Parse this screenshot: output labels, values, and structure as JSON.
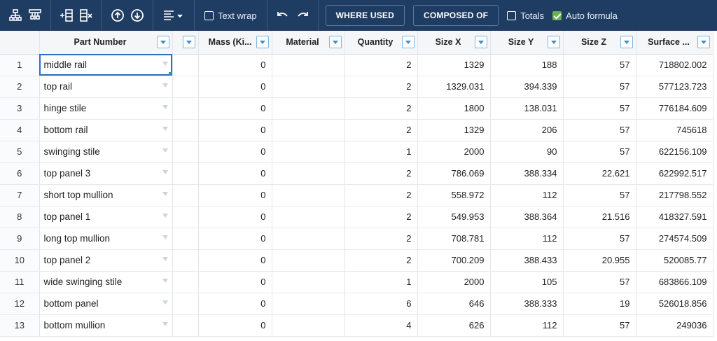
{
  "toolbar": {
    "text_wrap_label": "Text wrap",
    "text_wrap_checked": false,
    "where_used_label": "WHERE USED",
    "composed_of_label": "COMPOSED OF",
    "totals_label": "Totals",
    "totals_checked": false,
    "auto_formula_label": "Auto formula",
    "auto_formula_checked": true
  },
  "columns": [
    {
      "key": "part",
      "label": "Part Number"
    },
    {
      "key": "blank",
      "label": ""
    },
    {
      "key": "mass",
      "label": "Mass (Ki..."
    },
    {
      "key": "material",
      "label": "Material"
    },
    {
      "key": "quantity",
      "label": "Quantity"
    },
    {
      "key": "sizex",
      "label": "Size X"
    },
    {
      "key": "sizey",
      "label": "Size Y"
    },
    {
      "key": "sizez",
      "label": "Size Z"
    },
    {
      "key": "surface",
      "label": "Surface ..."
    }
  ],
  "rows": [
    {
      "n": "1",
      "part": "middle rail",
      "mass": "0",
      "material": "",
      "quantity": "2",
      "sizex": "1329",
      "sizey": "188",
      "sizez": "57",
      "surface": "718802.002"
    },
    {
      "n": "2",
      "part": "top rail",
      "mass": "0",
      "material": "",
      "quantity": "2",
      "sizex": "1329.031",
      "sizey": "394.339",
      "sizez": "57",
      "surface": "577123.723"
    },
    {
      "n": "3",
      "part": "hinge stile",
      "mass": "0",
      "material": "",
      "quantity": "2",
      "sizex": "1800",
      "sizey": "138.031",
      "sizez": "57",
      "surface": "776184.609"
    },
    {
      "n": "4",
      "part": "bottom rail",
      "mass": "0",
      "material": "",
      "quantity": "2",
      "sizex": "1329",
      "sizey": "206",
      "sizez": "57",
      "surface": "745618"
    },
    {
      "n": "5",
      "part": "swinging stile",
      "mass": "0",
      "material": "",
      "quantity": "1",
      "sizex": "2000",
      "sizey": "90",
      "sizez": "57",
      "surface": "622156.109"
    },
    {
      "n": "6",
      "part": "top panel 3",
      "mass": "0",
      "material": "",
      "quantity": "2",
      "sizex": "786.069",
      "sizey": "388.334",
      "sizez": "22.621",
      "surface": "622992.517"
    },
    {
      "n": "7",
      "part": "short top mullion",
      "mass": "0",
      "material": "",
      "quantity": "2",
      "sizex": "558.972",
      "sizey": "112",
      "sizez": "57",
      "surface": "217798.552"
    },
    {
      "n": "8",
      "part": "top panel 1",
      "mass": "0",
      "material": "",
      "quantity": "2",
      "sizex": "549.953",
      "sizey": "388.364",
      "sizez": "21.516",
      "surface": "418327.591"
    },
    {
      "n": "9",
      "part": "long top mullion",
      "mass": "0",
      "material": "",
      "quantity": "2",
      "sizex": "708.781",
      "sizey": "112",
      "sizez": "57",
      "surface": "274574.509"
    },
    {
      "n": "10",
      "part": "top panel 2",
      "mass": "0",
      "material": "",
      "quantity": "2",
      "sizex": "700.209",
      "sizey": "388.433",
      "sizez": "20.955",
      "surface": "520085.77"
    },
    {
      "n": "11",
      "part": "wide swinging stile",
      "mass": "0",
      "material": "",
      "quantity": "1",
      "sizex": "2000",
      "sizey": "105",
      "sizez": "57",
      "surface": "683866.109"
    },
    {
      "n": "12",
      "part": "bottom panel",
      "mass": "0",
      "material": "",
      "quantity": "6",
      "sizex": "646",
      "sizey": "388.333",
      "sizez": "19",
      "surface": "526018.856"
    },
    {
      "n": "13",
      "part": "bottom mullion",
      "mass": "0",
      "material": "",
      "quantity": "4",
      "sizex": "626",
      "sizey": "112",
      "sizez": "57",
      "surface": "249036"
    }
  ],
  "selected_row": 0,
  "colors": {
    "toolbar_bg": "#1f3d63",
    "selection": "#2c6fbf",
    "checkbox_checked": "#6ab04c"
  }
}
